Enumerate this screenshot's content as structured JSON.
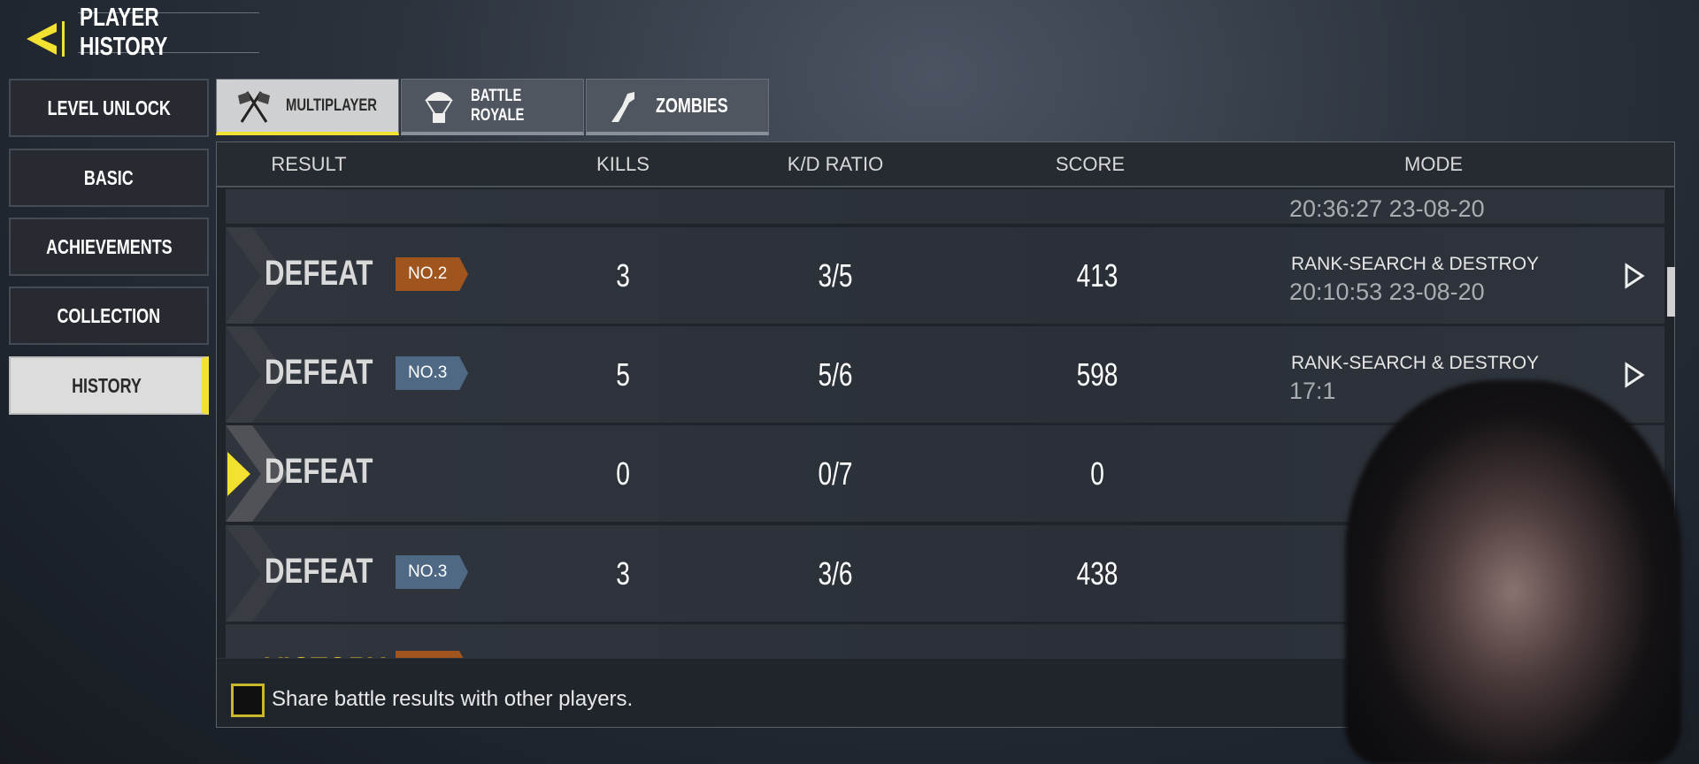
{
  "header": {
    "title": "PLAYER HISTORY",
    "back_icon": "back-arrow-icon",
    "accent": "#f2e130"
  },
  "sidebar": {
    "items": [
      {
        "label": "LEVEL UNLOCK"
      },
      {
        "label": "BASIC"
      },
      {
        "label": "ACHIEVEMENTS"
      },
      {
        "label": "COLLECTION"
      },
      {
        "label": "HISTORY",
        "active": true
      }
    ]
  },
  "tabs": [
    {
      "label": "MULTIPLAYER",
      "icon": "flags-icon",
      "active": true
    },
    {
      "label": "BATTLE ROYALE",
      "icon": "parachute-icon"
    },
    {
      "label": "ZOMBIES",
      "icon": "zombie-arm-icon"
    }
  ],
  "table": {
    "columns": [
      "RESULT",
      "KILLS",
      "K/D RATIO",
      "SCORE",
      "MODE"
    ],
    "partial_top": {
      "time": "20:36:27 23-08-20"
    },
    "rows": [
      {
        "result": "DEFEAT",
        "badge": "NO.2",
        "badge_color": "#a0551f",
        "kills": "3",
        "kd": "3/5",
        "score": "413",
        "mode": "RANK-SEARCH & DESTROY",
        "time": "20:10:53 23-08-20"
      },
      {
        "result": "DEFEAT",
        "badge": "NO.3",
        "badge_color": "#4f6884",
        "kills": "5",
        "kd": "5/6",
        "score": "598",
        "mode": "RANK-SEARCH & DESTROY",
        "time": "17:1"
      },
      {
        "result": "DEFEAT",
        "kills": "0",
        "kd": "0/7",
        "score": "0",
        "selected": true
      },
      {
        "result": "DEFEAT",
        "badge": "NO.3",
        "badge_color": "#4f6884",
        "kills": "3",
        "kd": "3/6",
        "score": "438"
      }
    ],
    "partial_bottom": {
      "result": "VICTORY",
      "badge_color": "#a0551f"
    }
  },
  "footer": {
    "share_label": "Share battle results with other players.",
    "checked": false
  }
}
